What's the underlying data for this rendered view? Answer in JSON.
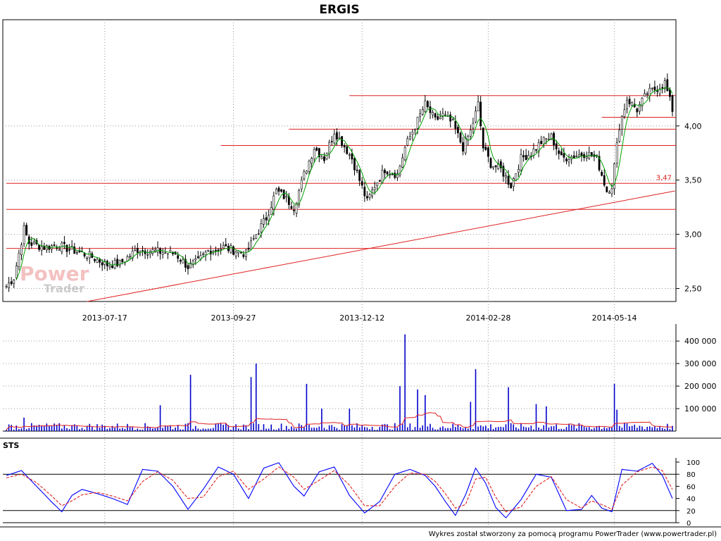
{
  "chart_data": [
    {
      "type": "candlestick",
      "title": "ERGIS",
      "ylim": [
        2.38,
        4.98
      ],
      "y_ticks": [
        {
          "value": 2.5,
          "label": "2,50"
        },
        {
          "value": 3.0,
          "label": "3,00"
        },
        {
          "value": 3.5,
          "label": "3,50"
        },
        {
          "value": 4.0,
          "label": "4,00"
        }
      ],
      "x_ticks": [
        {
          "bar": 39,
          "label": "2013-07-17"
        },
        {
          "bar": 90,
          "label": "2013-09-27"
        },
        {
          "bar": 141,
          "label": "2013-12-12"
        },
        {
          "bar": 191,
          "label": "2014-02-28"
        },
        {
          "bar": 241,
          "label": "2014-05-14"
        }
      ],
      "bar_count": 265,
      "close_keypoints": [
        [
          0,
          2.52
        ],
        [
          3,
          2.6
        ],
        [
          7,
          3.05
        ],
        [
          9,
          2.92
        ],
        [
          15,
          2.88
        ],
        [
          20,
          2.9
        ],
        [
          28,
          2.84
        ],
        [
          33,
          2.8
        ],
        [
          40,
          2.72
        ],
        [
          45,
          2.73
        ],
        [
          52,
          2.86
        ],
        [
          60,
          2.84
        ],
        [
          67,
          2.82
        ],
        [
          72,
          2.7
        ],
        [
          76,
          2.75
        ],
        [
          80,
          2.85
        ],
        [
          86,
          2.88
        ],
        [
          95,
          2.82
        ],
        [
          99,
          3.0
        ],
        [
          103,
          3.15
        ],
        [
          107,
          3.4
        ],
        [
          110,
          3.35
        ],
        [
          114,
          3.25
        ],
        [
          118,
          3.55
        ],
        [
          122,
          3.8
        ],
        [
          126,
          3.7
        ],
        [
          130,
          3.95
        ],
        [
          133,
          3.85
        ],
        [
          137,
          3.7
        ],
        [
          140,
          3.5
        ],
        [
          143,
          3.3
        ],
        [
          146,
          3.45
        ],
        [
          150,
          3.6
        ],
        [
          155,
          3.55
        ],
        [
          158,
          3.8
        ],
        [
          162,
          4.0
        ],
        [
          166,
          4.2
        ],
        [
          170,
          4.05
        ],
        [
          173,
          4.1
        ],
        [
          177,
          4.02
        ],
        [
          181,
          3.8
        ],
        [
          184,
          3.95
        ],
        [
          187,
          4.2
        ],
        [
          189,
          3.8
        ],
        [
          192,
          3.65
        ],
        [
          196,
          3.6
        ],
        [
          200,
          3.45
        ],
        [
          204,
          3.7
        ],
        [
          208,
          3.75
        ],
        [
          212,
          3.85
        ],
        [
          216,
          3.9
        ],
        [
          220,
          3.7
        ],
        [
          224,
          3.72
        ],
        [
          230,
          3.75
        ],
        [
          234,
          3.7
        ],
        [
          238,
          3.4
        ],
        [
          240,
          3.45
        ],
        [
          243,
          4.0
        ],
        [
          246,
          4.25
        ],
        [
          250,
          4.15
        ],
        [
          254,
          4.3
        ],
        [
          258,
          4.35
        ],
        [
          261,
          4.4
        ],
        [
          264,
          4.15
        ]
      ],
      "moving_average": {
        "period": 5,
        "color": "#00a000"
      },
      "annotation": {
        "value": 3.47,
        "label": "3,47"
      },
      "horizontal_levels": [
        {
          "value": 4.28,
          "from_bar": 136,
          "to_bar": 265
        },
        {
          "value": 4.08,
          "from_bar": 236,
          "to_bar": 265
        },
        {
          "value": 3.97,
          "from_bar": 112,
          "to_bar": 265
        },
        {
          "value": 3.82,
          "from_bar": 85,
          "to_bar": 265
        },
        {
          "value": 3.47,
          "from_bar": 0,
          "to_bar": 265
        },
        {
          "value": 3.23,
          "from_bar": 0,
          "to_bar": 265
        },
        {
          "value": 2.87,
          "from_bar": 0,
          "to_bar": 265
        }
      ],
      "trend_line": {
        "from": [
          32,
          2.38
        ],
        "to": [
          265,
          3.4
        ]
      },
      "colors": {
        "candle": "#000000",
        "levels": "#e02020",
        "grid": "#999999"
      }
    },
    {
      "type": "bar",
      "title": "",
      "ylim": [
        0,
        460000
      ],
      "y_ticks": [
        {
          "value": 100000,
          "label": "100 000"
        },
        {
          "value": 200000,
          "label": "200 000"
        },
        {
          "value": 300000,
          "label": "300 000"
        },
        {
          "value": 400000,
          "label": "400 000"
        }
      ],
      "base_volume": 18000,
      "spikes": [
        [
          7,
          60000
        ],
        [
          28,
          25000
        ],
        [
          61,
          115000
        ],
        [
          73,
          250000
        ],
        [
          97,
          240000
        ],
        [
          99,
          300000
        ],
        [
          119,
          210000
        ],
        [
          125,
          100000
        ],
        [
          136,
          100000
        ],
        [
          156,
          200000
        ],
        [
          158,
          430000
        ],
        [
          163,
          185000
        ],
        [
          166,
          160000
        ],
        [
          184,
          130000
        ],
        [
          186,
          275000
        ],
        [
          199,
          195000
        ],
        [
          210,
          120000
        ],
        [
          214,
          110000
        ],
        [
          241,
          210000
        ],
        [
          242,
          95000
        ]
      ],
      "moving_average": {
        "period": 15,
        "color": "#e02020"
      },
      "colors": {
        "bars": "#0000cc"
      }
    },
    {
      "type": "line",
      "title": "STS",
      "ylim": [
        0,
        100
      ],
      "y_ticks": [
        {
          "value": 0,
          "label": "0"
        },
        {
          "value": 20,
          "label": "20"
        },
        {
          "value": 40,
          "label": "40"
        },
        {
          "value": 60,
          "label": "60"
        },
        {
          "value": 80,
          "label": "80"
        },
        {
          "value": 100,
          "label": "100"
        }
      ],
      "reference_levels": [
        20,
        80
      ],
      "series": [
        {
          "line": "solid",
          "color": "#0000ff",
          "points": [
            [
              0,
              78
            ],
            [
              6,
              86
            ],
            [
              12,
              60
            ],
            [
              18,
              34
            ],
            [
              22,
              18
            ],
            [
              26,
              45
            ],
            [
              30,
              55
            ],
            [
              36,
              48
            ],
            [
              42,
              40
            ],
            [
              48,
              30
            ],
            [
              54,
              88
            ],
            [
              60,
              85
            ],
            [
              66,
              60
            ],
            [
              72,
              22
            ],
            [
              78,
              55
            ],
            [
              84,
              92
            ],
            [
              90,
              80
            ],
            [
              96,
              40
            ],
            [
              102,
              90
            ],
            [
              108,
              99
            ],
            [
              114,
              60
            ],
            [
              118,
              44
            ],
            [
              124,
              84
            ],
            [
              130,
              92
            ],
            [
              136,
              45
            ],
            [
              142,
              16
            ],
            [
              148,
              35
            ],
            [
              154,
              80
            ],
            [
              160,
              88
            ],
            [
              166,
              78
            ],
            [
              170,
              60
            ],
            [
              174,
              35
            ],
            [
              178,
              12
            ],
            [
              182,
              46
            ],
            [
              186,
              90
            ],
            [
              190,
              65
            ],
            [
              194,
              25
            ],
            [
              198,
              8
            ],
            [
              204,
              38
            ],
            [
              210,
              80
            ],
            [
              216,
              75
            ],
            [
              222,
              20
            ],
            [
              228,
              22
            ],
            [
              232,
              45
            ],
            [
              236,
              24
            ],
            [
              240,
              18
            ],
            [
              244,
              88
            ],
            [
              250,
              85
            ],
            [
              256,
              98
            ],
            [
              260,
              78
            ],
            [
              264,
              40
            ]
          ]
        },
        {
          "line": "dashed",
          "color": "#e02020",
          "points": [
            [
              0,
              74
            ],
            [
              6,
              80
            ],
            [
              12,
              66
            ],
            [
              18,
              44
            ],
            [
              22,
              28
            ],
            [
              26,
              36
            ],
            [
              30,
              46
            ],
            [
              36,
              50
            ],
            [
              42,
              44
            ],
            [
              48,
              36
            ],
            [
              54,
              68
            ],
            [
              60,
              84
            ],
            [
              66,
              70
            ],
            [
              72,
              40
            ],
            [
              78,
              42
            ],
            [
              84,
              76
            ],
            [
              90,
              85
            ],
            [
              96,
              55
            ],
            [
              102,
              72
            ],
            [
              108,
              92
            ],
            [
              114,
              75
            ],
            [
              118,
              55
            ],
            [
              124,
              70
            ],
            [
              130,
              86
            ],
            [
              136,
              62
            ],
            [
              142,
              28
            ],
            [
              148,
              28
            ],
            [
              154,
              60
            ],
            [
              160,
              82
            ],
            [
              166,
              80
            ],
            [
              170,
              68
            ],
            [
              174,
              48
            ],
            [
              178,
              24
            ],
            [
              182,
              30
            ],
            [
              186,
              72
            ],
            [
              190,
              75
            ],
            [
              194,
              42
            ],
            [
              198,
              18
            ],
            [
              204,
              26
            ],
            [
              210,
              60
            ],
            [
              216,
              76
            ],
            [
              222,
              38
            ],
            [
              228,
              24
            ],
            [
              232,
              36
            ],
            [
              236,
              30
            ],
            [
              240,
              22
            ],
            [
              244,
              62
            ],
            [
              250,
              84
            ],
            [
              256,
              92
            ],
            [
              260,
              86
            ],
            [
              264,
              55
            ]
          ]
        }
      ]
    }
  ],
  "watermark": {
    "word1": "Power",
    "word2": "Trader"
  },
  "footer": {
    "credit": "Wykres został stworzony za pomocą programu PowerTrader (www.powertrader.pl)"
  }
}
